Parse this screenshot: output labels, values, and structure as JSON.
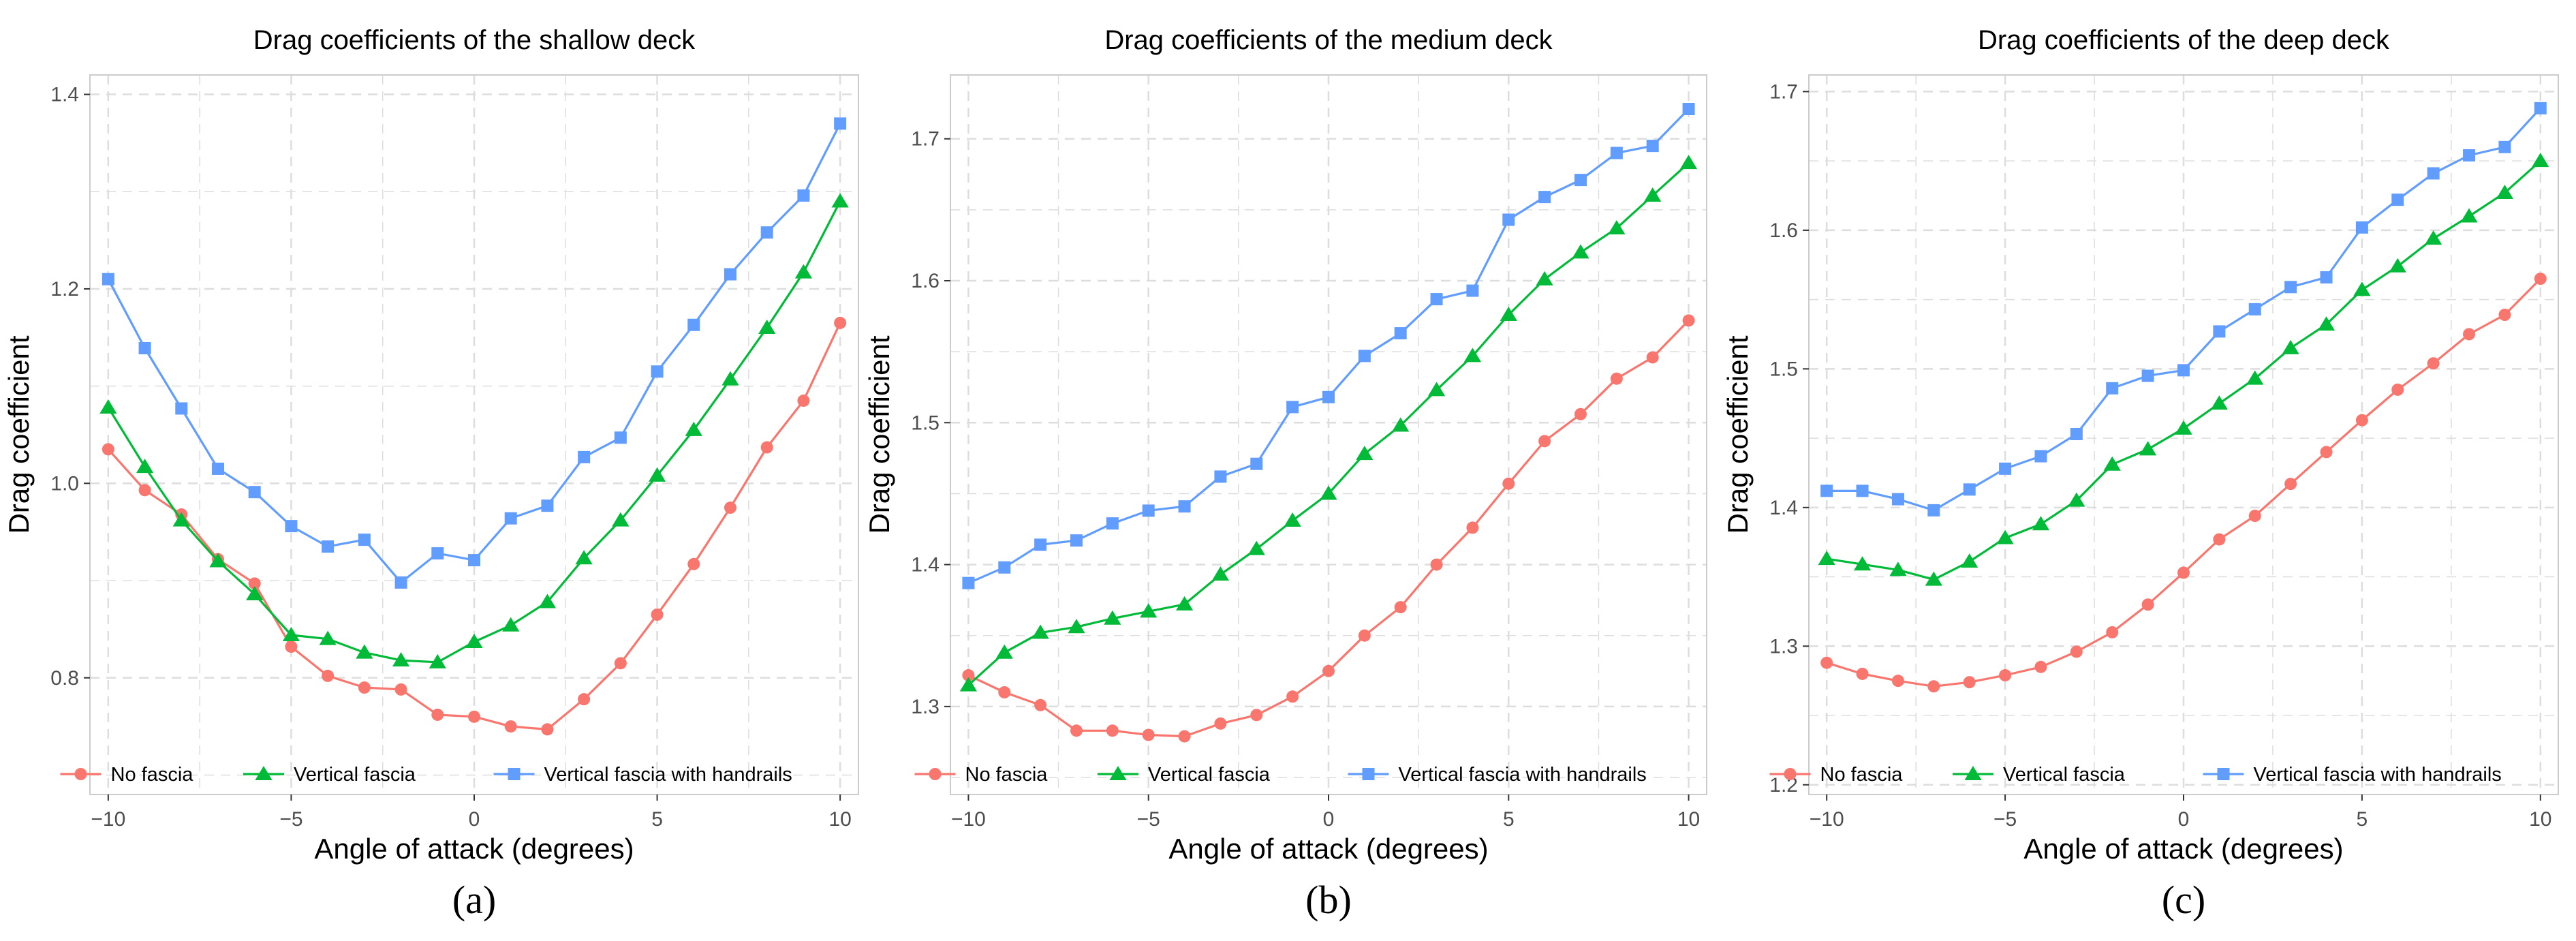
{
  "colors": {
    "no_fascia": "#F8766D",
    "vertical_fascia": "#00BA38",
    "vertical_fascia_handrails": "#619CFF",
    "grid": "#dddddd",
    "axis_text": "#4d4d4d",
    "text": "#000000"
  },
  "chart_data": [
    {
      "type": "line",
      "title": "Drag coefficients of the shallow deck",
      "xlabel": "Angle of attack (degrees)",
      "ylabel": "Drag coefficient",
      "panel_label": "(a)",
      "xlim": [
        -10.5,
        10.5
      ],
      "ylim": [
        0.68,
        1.42
      ],
      "xticks": [
        -10,
        -5,
        0,
        5,
        10
      ],
      "xtick_labels": [
        "−10",
        "−5",
        "0",
        "5",
        "10"
      ],
      "yticks": [
        0.8,
        1.0,
        1.2,
        1.4
      ],
      "ytick_labels": [
        "0.8",
        "1.0",
        "1.2",
        "1.4"
      ],
      "grid": true,
      "legend_position": "bottom-inside",
      "x": [
        -10,
        -9,
        -8,
        -7,
        -6,
        -5,
        -4,
        -3,
        -2,
        -1,
        0,
        1,
        2,
        3,
        4,
        5,
        6,
        7,
        8,
        9,
        10
      ],
      "series": [
        {
          "name": "No fascia",
          "marker": "circle",
          "values": [
            1.035,
            0.993,
            0.968,
            0.922,
            0.897,
            0.832,
            0.802,
            0.79,
            0.788,
            0.762,
            0.76,
            0.75,
            0.747,
            0.778,
            0.815,
            0.865,
            0.917,
            0.975,
            1.037,
            1.085,
            1.165
          ]
        },
        {
          "name": "Vertical fascia",
          "marker": "triangle",
          "values": [
            1.078,
            1.017,
            0.962,
            0.92,
            0.886,
            0.844,
            0.84,
            0.826,
            0.818,
            0.816,
            0.837,
            0.854,
            0.878,
            0.923,
            0.962,
            1.008,
            1.055,
            1.107,
            1.16,
            1.217,
            1.29
          ]
        },
        {
          "name": "Vertical fascia with handrails",
          "marker": "square",
          "values": [
            1.21,
            1.139,
            1.077,
            1.015,
            0.991,
            0.956,
            0.935,
            0.942,
            0.898,
            0.928,
            0.921,
            0.964,
            0.977,
            1.027,
            1.047,
            1.115,
            1.163,
            1.215,
            1.258,
            1.296,
            1.37
          ]
        }
      ]
    },
    {
      "type": "line",
      "title": "Drag coefficients of the medium deck",
      "xlabel": "Angle of attack (degrees)",
      "ylabel": "Drag coefficient",
      "panel_label": "(b)",
      "xlim": [
        -10.5,
        10.5
      ],
      "ylim": [
        1.238,
        1.745
      ],
      "xticks": [
        -10,
        -5,
        0,
        5,
        10
      ],
      "xtick_labels": [
        "−10",
        "−5",
        "0",
        "5",
        "10"
      ],
      "yticks": [
        1.3,
        1.4,
        1.5,
        1.6,
        1.7
      ],
      "ytick_labels": [
        "1.3",
        "1.4",
        "1.5",
        "1.6",
        "1.7"
      ],
      "grid": true,
      "legend_position": "bottom-inside",
      "x": [
        -10,
        -9,
        -8,
        -7,
        -6,
        -5,
        -4,
        -3,
        -2,
        -1,
        0,
        1,
        2,
        3,
        4,
        5,
        6,
        7,
        8,
        9,
        10
      ],
      "series": [
        {
          "name": "No fascia",
          "marker": "circle",
          "values": [
            1.322,
            1.31,
            1.301,
            1.283,
            1.283,
            1.28,
            1.279,
            1.288,
            1.294,
            1.307,
            1.325,
            1.35,
            1.37,
            1.4,
            1.426,
            1.457,
            1.487,
            1.506,
            1.531,
            1.546,
            1.572
          ]
        },
        {
          "name": "Vertical fascia",
          "marker": "triangle",
          "values": [
            1.315,
            1.338,
            1.352,
            1.356,
            1.362,
            1.367,
            1.372,
            1.393,
            1.411,
            1.431,
            1.45,
            1.478,
            1.498,
            1.523,
            1.547,
            1.576,
            1.601,
            1.62,
            1.637,
            1.66,
            1.683
          ]
        },
        {
          "name": "Vertical fascia with handrails",
          "marker": "square",
          "values": [
            1.387,
            1.398,
            1.414,
            1.417,
            1.429,
            1.438,
            1.441,
            1.462,
            1.471,
            1.511,
            1.518,
            1.547,
            1.563,
            1.587,
            1.593,
            1.643,
            1.659,
            1.671,
            1.69,
            1.695,
            1.721
          ]
        }
      ]
    },
    {
      "type": "line",
      "title": "Drag coefficients of the deep deck",
      "xlabel": "Angle of attack (degrees)",
      "ylabel": "Drag coefficient",
      "panel_label": "(c)",
      "xlim": [
        -10.5,
        10.5
      ],
      "ylim": [
        1.193,
        1.712
      ],
      "xticks": [
        -10,
        -5,
        0,
        5,
        10
      ],
      "xtick_labels": [
        "−10",
        "−5",
        "0",
        "5",
        "10"
      ],
      "yticks": [
        1.2,
        1.3,
        1.4,
        1.5,
        1.6,
        1.7
      ],
      "ytick_labels": [
        "1.2",
        "1.3",
        "1.4",
        "1.5",
        "1.6",
        "1.7"
      ],
      "grid": true,
      "legend_position": "bottom-inside",
      "x": [
        -10,
        -9,
        -8,
        -7,
        -6,
        -5,
        -4,
        -3,
        -2,
        -1,
        0,
        1,
        2,
        3,
        4,
        5,
        6,
        7,
        8,
        9,
        10
      ],
      "series": [
        {
          "name": "No fascia",
          "marker": "circle",
          "values": [
            1.288,
            1.28,
            1.275,
            1.271,
            1.274,
            1.279,
            1.285,
            1.296,
            1.31,
            1.33,
            1.353,
            1.377,
            1.394,
            1.417,
            1.44,
            1.463,
            1.485,
            1.504,
            1.525,
            1.539,
            1.565
          ]
        },
        {
          "name": "Vertical fascia",
          "marker": "triangle",
          "values": [
            1.363,
            1.359,
            1.355,
            1.348,
            1.361,
            1.378,
            1.388,
            1.405,
            1.431,
            1.442,
            1.457,
            1.475,
            1.493,
            1.515,
            1.532,
            1.557,
            1.574,
            1.594,
            1.61,
            1.627,
            1.65
          ]
        },
        {
          "name": "Vertical fascia with handrails",
          "marker": "square",
          "values": [
            1.412,
            1.412,
            1.406,
            1.398,
            1.413,
            1.428,
            1.437,
            1.453,
            1.486,
            1.495,
            1.499,
            1.527,
            1.543,
            1.559,
            1.566,
            1.602,
            1.622,
            1.641,
            1.654,
            1.66,
            1.688
          ]
        }
      ]
    }
  ]
}
